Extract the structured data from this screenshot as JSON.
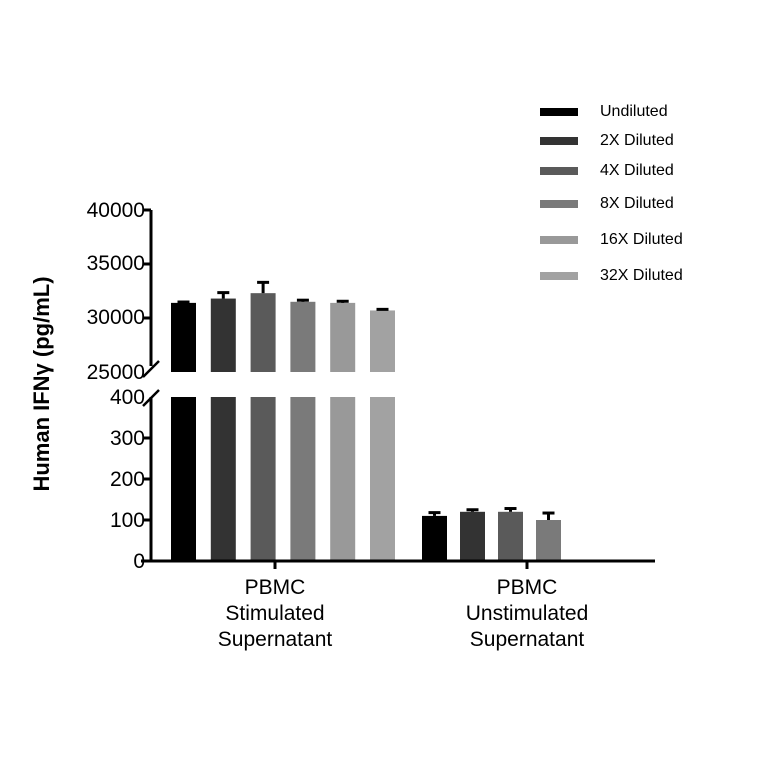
{
  "chart_data": {
    "type": "bar",
    "title": "",
    "xlabel": "",
    "ylabel": "Human IFNγ (pg/mL)",
    "categories": [
      "PBMC\nStimulated\nSupernatant",
      "PBMC\nUnstimulated\nSupernatant"
    ],
    "category_lines": [
      [
        "PBMC",
        "Stimulated",
        "Supernatant"
      ],
      [
        "PBMC",
        "Unstimulated",
        "Supernatant"
      ]
    ],
    "y_axis_segments": [
      {
        "range": [
          0,
          400
        ],
        "ticks": [
          "0",
          "100",
          "200",
          "300",
          "400"
        ]
      },
      {
        "range": [
          25000,
          40000
        ],
        "ticks": [
          "25000",
          "30000",
          "35000",
          "40000"
        ]
      }
    ],
    "axis_break": true,
    "grid": false,
    "legend_position": "top-right",
    "series": [
      {
        "name": "Undiluted",
        "color": "#000000",
        "values": [
          31400,
          110
        ],
        "errors": [
          80,
          8
        ]
      },
      {
        "name": "2X Diluted",
        "color": "#333333",
        "values": [
          31800,
          120
        ],
        "errors": [
          550,
          5
        ]
      },
      {
        "name": "4X Diluted",
        "color": "#5a5a5a",
        "values": [
          32300,
          120
        ],
        "errors": [
          1000,
          8
        ]
      },
      {
        "name": "8X Diluted",
        "color": "#7a7a7a",
        "values": [
          31500,
          100
        ],
        "errors": [
          150,
          17
        ]
      },
      {
        "name": "16X Diluted",
        "color": "#999999",
        "values": [
          31400,
          null
        ],
        "errors": [
          150,
          null
        ]
      },
      {
        "name": "32X Diluted",
        "color": "#a2a2a2",
        "values": [
          30700,
          null
        ],
        "errors": [
          100,
          null
        ]
      }
    ]
  },
  "legend": {
    "items": [
      {
        "label": "Undiluted",
        "color": "#000000"
      },
      {
        "label": "2X Diluted",
        "color": "#333333"
      },
      {
        "label": "4X Diluted",
        "color": "#5a5a5a"
      },
      {
        "label": "8X Diluted",
        "color": "#7a7a7a"
      },
      {
        "label": "16X Diluted",
        "color": "#999999"
      },
      {
        "label": "32X Diluted",
        "color": "#a2a2a2"
      }
    ]
  },
  "axis": {
    "ylabel": "Human IFNγ (pg/mL)",
    "upper_ticks": [
      "40000",
      "35000",
      "30000",
      "25000"
    ],
    "lower_ticks": [
      "400",
      "300",
      "200",
      "100",
      "0"
    ]
  }
}
